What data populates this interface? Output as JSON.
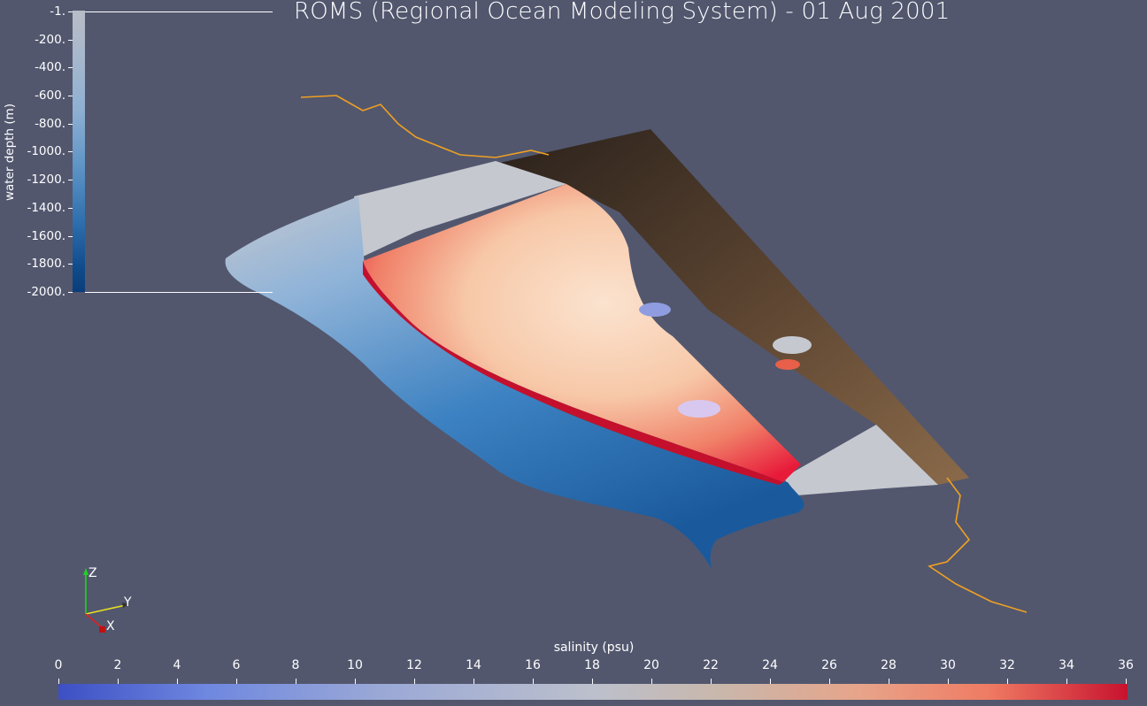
{
  "title": "ROMS (Regional Ocean Modeling System) - 01 Aug 2001",
  "depth_legend": {
    "label": "water depth (m)",
    "ticks": [
      "-1.",
      "-200.",
      "-400.",
      "-600.",
      "-800.",
      "-1000.",
      "-1200.",
      "-1400.",
      "-1600.",
      "-1800.",
      "-2000."
    ]
  },
  "salinity_legend": {
    "label": "salinity (psu)",
    "ticks": [
      "0",
      "2",
      "4",
      "6",
      "8",
      "10",
      "12",
      "14",
      "16",
      "18",
      "20",
      "22",
      "24",
      "26",
      "28",
      "30",
      "32",
      "34",
      "36"
    ]
  },
  "axes": {
    "z": "Z",
    "y": "Y",
    "x": "X"
  },
  "colors": {
    "background": "#52576e",
    "salinity_low": "#3d4fc4",
    "salinity_mid": "#bcc0cc",
    "salinity_high": "#c8122e",
    "coastline": "#f0a020",
    "depth_shallow": "#b9bcc6",
    "depth_deep": "#0a3d7a"
  }
}
